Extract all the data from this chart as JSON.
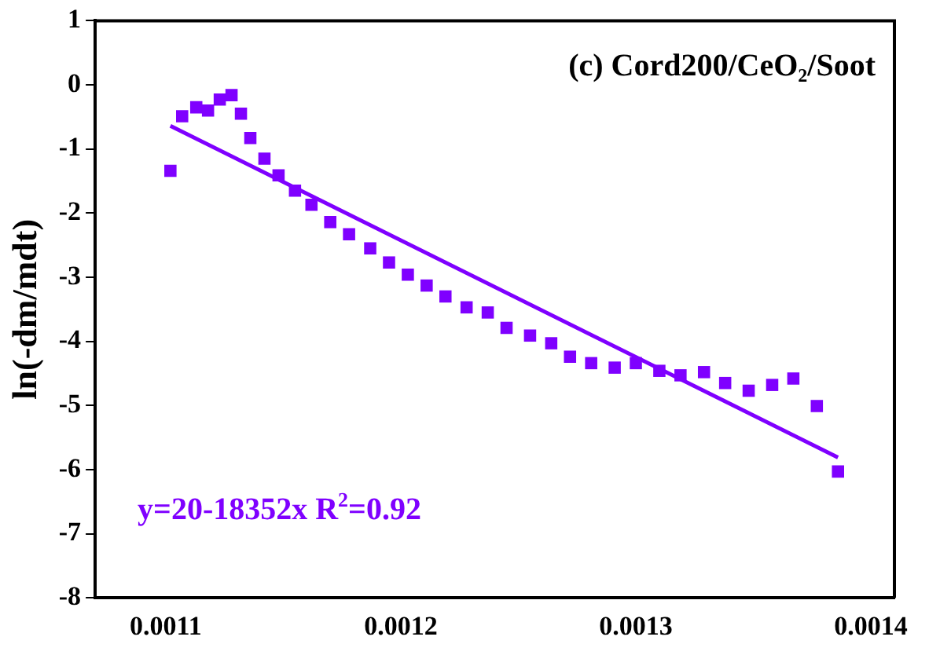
{
  "chart_data": {
    "type": "scatter",
    "ylabel": "ln(-dm/mdt)",
    "grid": false,
    "legend": false,
    "xlim": [
      0.00107,
      0.00141
    ],
    "xticks": [
      0.0011,
      0.0012,
      0.0013,
      0.0014
    ],
    "ylim": [
      -8,
      1
    ],
    "yticks": [
      -8,
      -7,
      -6,
      -5,
      -4,
      -3,
      -2,
      -1,
      0,
      1
    ],
    "annotations": [
      "(c) Cord200/CeO₂/Soot",
      "y=20-18352x R$^{2}$=0.92"
    ],
    "series": [
      {
        "marker": "square",
        "color": "#7f00ff",
        "x": [
          0.001102,
          0.001107,
          0.001113,
          0.001118,
          0.001123,
          0.001128,
          0.001132,
          0.001136,
          0.001142,
          0.001148,
          0.001155,
          0.001162,
          0.00117,
          0.001178,
          0.001187,
          0.001195,
          0.001203,
          0.001211,
          0.001219,
          0.001228,
          0.001237,
          0.001245,
          0.001255,
          0.001264,
          0.001272,
          0.001281,
          0.001291,
          0.0013,
          0.00131,
          0.001319,
          0.001329,
          0.001338,
          0.001348,
          0.001358,
          0.001367,
          0.001377,
          0.001386
        ],
        "values": [
          -1.34,
          -0.49,
          -0.35,
          -0.4,
          -0.23,
          -0.16,
          -0.45,
          -0.83,
          -1.15,
          -1.41,
          -1.65,
          -1.87,
          -2.14,
          -2.33,
          -2.55,
          -2.77,
          -2.96,
          -3.13,
          -3.3,
          -3.47,
          -3.55,
          -3.79,
          -3.91,
          -4.03,
          -4.24,
          -4.34,
          -4.41,
          -4.34,
          -4.46,
          -4.53,
          -4.48,
          -4.65,
          -4.77,
          -4.68,
          -4.58,
          -5.01,
          -6.03
        ]
      },
      {
        "type": "line",
        "marker": "none",
        "color": "#7f00ff",
        "x": [
          0.001102,
          0.001386
        ],
        "values": [
          -0.64,
          -5.81
        ]
      }
    ]
  }
}
